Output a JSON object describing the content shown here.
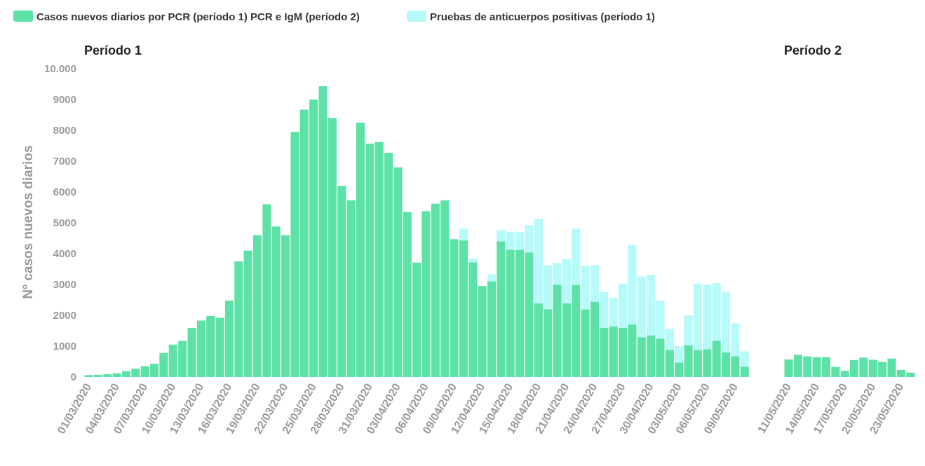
{
  "chart_data": {
    "type": "bar",
    "stacked": true,
    "ylabel": "Nº casos nuevos diarios",
    "ylim": [
      0,
      10000
    ],
    "yticks": [
      0,
      1000,
      2000,
      3000,
      4000,
      5000,
      6000,
      7000,
      8000,
      9000,
      10000
    ],
    "ytick_labels": [
      "0",
      "1000",
      "2000",
      "3000",
      "4000",
      "5000",
      "6000",
      "7000",
      "8000",
      "9000",
      "10.000"
    ],
    "grid": false,
    "legend_position": "top-left",
    "colors": {
      "pcr": "#5ce1a6",
      "antibody": "#b6fafa"
    },
    "legend": [
      "Casos nuevos diarios por PCR (período 1) PCR e IgM (período 2)",
      "Pruebas de anticuerpos positivas (período 1)"
    ],
    "panels": [
      {
        "title": "Período 1",
        "x": [
          "01/03/2020",
          "02/03/2020",
          "03/03/2020",
          "04/03/2020",
          "05/03/2020",
          "06/03/2020",
          "07/03/2020",
          "08/03/2020",
          "09/03/2020",
          "10/03/2020",
          "11/03/2020",
          "12/03/2020",
          "13/03/2020",
          "14/03/2020",
          "15/03/2020",
          "16/03/2020",
          "17/03/2020",
          "18/03/2020",
          "19/03/2020",
          "20/03/2020",
          "21/03/2020",
          "22/03/2020",
          "23/03/2020",
          "24/03/2020",
          "25/03/2020",
          "26/03/2020",
          "27/03/2020",
          "28/03/2020",
          "29/03/2020",
          "30/03/2020",
          "31/03/2020",
          "01/04/2020",
          "02/04/2020",
          "03/04/2020",
          "04/04/2020",
          "05/04/2020",
          "06/04/2020",
          "07/04/2020",
          "08/04/2020",
          "09/04/2020",
          "10/04/2020",
          "11/04/2020",
          "12/04/2020",
          "13/04/2020",
          "14/04/2020",
          "15/04/2020",
          "16/04/2020",
          "17/04/2020",
          "18/04/2020",
          "19/04/2020",
          "20/04/2020",
          "21/04/2020",
          "22/04/2020",
          "23/04/2020",
          "24/04/2020",
          "25/04/2020",
          "26/04/2020",
          "27/04/2020",
          "28/04/2020",
          "29/04/2020",
          "30/04/2020",
          "01/05/2020",
          "02/05/2020",
          "03/05/2020",
          "04/05/2020",
          "05/05/2020",
          "06/05/2020",
          "07/05/2020",
          "08/05/2020",
          "09/05/2020",
          "10/05/2020"
        ],
        "tick_labels": [
          "01/03/2020",
          "04/03/2020",
          "07/03/2020",
          "10/03/2020",
          "13/03/2020",
          "16/03/2020",
          "19/03/2020",
          "22/03/2020",
          "25/03/2020",
          "28/03/2020",
          "31/03/2020",
          "03/04/2020",
          "06/04/2020",
          "09/04/2020",
          "12/04/2020",
          "15/04/2020",
          "18/04/2020",
          "21/04/2020",
          "24/04/2020",
          "27/04/2020",
          "30/04/2020",
          "03/05/2020",
          "06/05/2020",
          "09/05/2020"
        ],
        "series": [
          {
            "name": "Casos nuevos diarios por PCR (período 1) PCR e IgM (período 2)",
            "values": [
              60,
              70,
              90,
              120,
              190,
              270,
              350,
              430,
              780,
              1050,
              1170,
              1590,
              1830,
              1980,
              1920,
              2480,
              3750,
              4100,
              4600,
              5600,
              4880,
              4600,
              7950,
              8670,
              9000,
              9430,
              8400,
              6200,
              5730,
              8250,
              7570,
              7620,
              7270,
              6800,
              5350,
              3710,
              5380,
              5620,
              5730,
              4470,
              4430,
              3720,
              2950,
              3100,
              4400,
              4130,
              4120,
              4040,
              2390,
              2200,
              2990,
              2390,
              2980,
              2190,
              2440,
              1590,
              1640,
              1590,
              1700,
              1290,
              1350,
              1240,
              880,
              470,
              1030,
              870,
              900,
              1170,
              800,
              670,
              330
            ]
          },
          {
            "name": "Pruebas de anticuerpos positivas (período 1)",
            "values": [
              0,
              0,
              0,
              0,
              0,
              0,
              0,
              0,
              0,
              0,
              0,
              0,
              0,
              0,
              0,
              0,
              0,
              0,
              0,
              0,
              0,
              0,
              0,
              0,
              0,
              0,
              0,
              0,
              0,
              0,
              0,
              0,
              0,
              0,
              0,
              0,
              0,
              0,
              0,
              0,
              380,
              130,
              0,
              230,
              360,
              580,
              580,
              880,
              2740,
              1420,
              710,
              1430,
              1830,
              1420,
              1190,
              1160,
              930,
              1440,
              2580,
              1970,
              1960,
              1240,
              680,
              530,
              970,
              2160,
              2100,
              1880,
              1960,
              1070,
              500
            ]
          }
        ]
      },
      {
        "title": "Período 2",
        "x": [
          "11/05/2020",
          "12/05/2020",
          "13/05/2020",
          "14/05/2020",
          "15/05/2020",
          "16/05/2020",
          "17/05/2020",
          "18/05/2020",
          "19/05/2020",
          "20/05/2020",
          "21/05/2020",
          "22/05/2020",
          "23/05/2020",
          "24/05/2020"
        ],
        "tick_labels": [
          "11/05/2020",
          "14/05/2020",
          "17/05/2020",
          "20/05/2020",
          "23/05/2020"
        ],
        "series": [
          {
            "name": "Casos nuevos diarios por PCR (período 1) PCR e IgM (período 2)",
            "values": [
              570,
              720,
              670,
              640,
              640,
              330,
              200,
              550,
              630,
              560,
              490,
              600,
              230,
              140
            ]
          }
        ]
      }
    ]
  }
}
